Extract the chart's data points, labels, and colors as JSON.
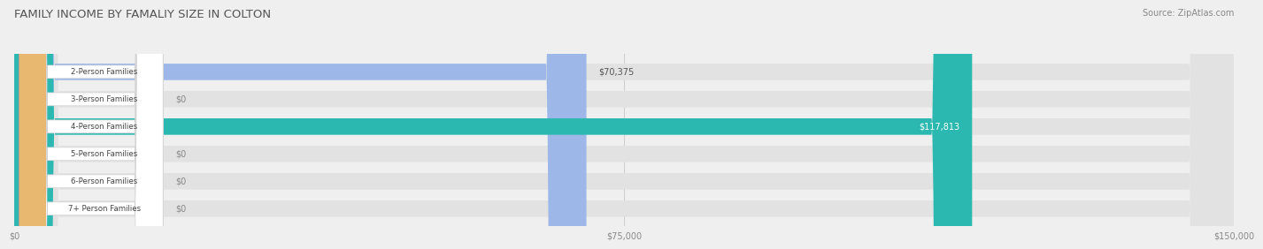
{
  "title": "FAMILY INCOME BY FAMALIY SIZE IN COLTON",
  "source": "Source: ZipAtlas.com",
  "categories": [
    "2-Person Families",
    "3-Person Families",
    "4-Person Families",
    "5-Person Families",
    "6-Person Families",
    "7+ Person Families"
  ],
  "values": [
    70375,
    0,
    117813,
    0,
    0,
    0
  ],
  "bar_colors": [
    "#9db8e8",
    "#c0a8d8",
    "#2ab8b0",
    "#a8a8d8",
    "#f0a0b8",
    "#f8d8a8"
  ],
  "dot_colors": [
    "#7898d8",
    "#a080c0",
    "#1a9898",
    "#8888c8",
    "#e87898",
    "#e8b870"
  ],
  "value_labels": [
    "$70,375",
    "$0",
    "$117,813",
    "$0",
    "$0",
    "$0"
  ],
  "xmax": 150000,
  "xticks": [
    0,
    75000,
    150000
  ],
  "xticklabels": [
    "$0",
    "$75,000",
    "$150,000"
  ],
  "background_color": "#efefef",
  "bar_bg_color": "#e2e2e2",
  "title_fontsize": 9.5,
  "source_fontsize": 7
}
